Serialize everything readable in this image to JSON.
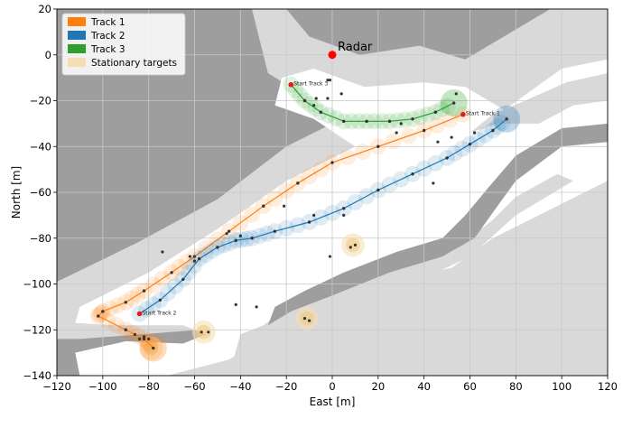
{
  "chart_data": {
    "type": "scatter",
    "title": "",
    "xlabel": "East [m]",
    "ylabel": "North [m]",
    "xlim": [
      -120,
      120
    ],
    "ylim": [
      -140,
      20
    ],
    "xticks": [
      -120,
      -100,
      -80,
      -60,
      -40,
      -20,
      0,
      20,
      40,
      60,
      80,
      100,
      120
    ],
    "yticks": [
      -140,
      -120,
      -100,
      -80,
      -60,
      -40,
      -20,
      0,
      20
    ],
    "grid": true,
    "legend": {
      "placement": "top-left",
      "entries": [
        {
          "label": "Track 1",
          "color": "#ff7f0e"
        },
        {
          "label": "Track 2",
          "color": "#1f77b4"
        },
        {
          "label": "Track 3",
          "color": "#2ca02c"
        },
        {
          "label": "Stationary targets",
          "color": "#f5deb3"
        }
      ]
    },
    "colors": {
      "occupied": "#9e9e9e",
      "unknown": "#d9d9d9",
      "free": "#ffffff",
      "radar": "#ff0000",
      "start_marker": "#e8191b",
      "detections": "#333333"
    },
    "radar": {
      "label": "Radar",
      "x": 0,
      "y": 0
    },
    "tracks": [
      {
        "name": "Track 1",
        "color": "#ff7f0e",
        "start_label": "Start Track 1",
        "start": [
          57,
          -26
        ],
        "points": [
          [
            57,
            -26
          ],
          [
            40,
            -33
          ],
          [
            20,
            -40
          ],
          [
            0,
            -47
          ],
          [
            -15,
            -56
          ],
          [
            -30,
            -66
          ],
          [
            -45,
            -77
          ],
          [
            -60,
            -88
          ],
          [
            -70,
            -95
          ],
          [
            -82,
            -103
          ],
          [
            -90,
            -108
          ],
          [
            -100,
            -112
          ],
          [
            -102,
            -114
          ],
          [
            -90,
            -120
          ],
          [
            -82,
            -124
          ],
          [
            -78,
            -128
          ]
        ]
      },
      {
        "name": "Track 2",
        "color": "#1f77b4",
        "start_label": "Start Track 2",
        "start": [
          -84,
          -113
        ],
        "points": [
          [
            -84,
            -113
          ],
          [
            -75,
            -107
          ],
          [
            -65,
            -98
          ],
          [
            -58,
            -89
          ],
          [
            -50,
            -84
          ],
          [
            -42,
            -81
          ],
          [
            -35,
            -80
          ],
          [
            -25,
            -77
          ],
          [
            -10,
            -73
          ],
          [
            5,
            -67
          ],
          [
            20,
            -59
          ],
          [
            35,
            -52
          ],
          [
            50,
            -45
          ],
          [
            60,
            -39
          ],
          [
            70,
            -33
          ],
          [
            76,
            -28
          ]
        ]
      },
      {
        "name": "Track 3",
        "color": "#2ca02c",
        "start_label": "Start Track 3",
        "start": [
          -18,
          -13
        ],
        "points": [
          [
            -18,
            -13
          ],
          [
            -12,
            -20
          ],
          [
            -5,
            -25
          ],
          [
            5,
            -29
          ],
          [
            15,
            -29
          ],
          [
            25,
            -29
          ],
          [
            35,
            -28
          ],
          [
            45,
            -25
          ],
          [
            53,
            -21
          ]
        ]
      }
    ],
    "stationary_targets": [
      [
        -56,
        -121
      ],
      [
        -11,
        -115
      ],
      [
        9,
        -83
      ],
      [
        -79,
        -128
      ]
    ],
    "detections": [
      [
        -2,
        -11
      ],
      [
        -1,
        -11
      ],
      [
        4,
        -17
      ],
      [
        -7,
        -19
      ],
      [
        -21,
        -66
      ],
      [
        -8,
        -70
      ],
      [
        5,
        -70
      ],
      [
        46,
        -38
      ],
      [
        52,
        -36
      ],
      [
        54,
        -17
      ],
      [
        62,
        -34
      ],
      [
        44,
        -56
      ],
      [
        -40,
        -79
      ],
      [
        -46,
        -78
      ],
      [
        -60,
        -90
      ],
      [
        -62,
        -88
      ],
      [
        -74,
        -86
      ],
      [
        -42,
        -109
      ],
      [
        -33,
        -110
      ],
      [
        -54,
        -121
      ],
      [
        -57,
        -121
      ],
      [
        -12,
        -115
      ],
      [
        -10,
        -116
      ],
      [
        8,
        -84
      ],
      [
        10,
        -83
      ],
      [
        -86,
        -122
      ],
      [
        -84,
        -124
      ],
      [
        -82,
        -123
      ],
      [
        -80,
        -124
      ],
      [
        -1,
        -88
      ],
      [
        28,
        -34
      ],
      [
        30,
        -30
      ],
      [
        -2,
        -19
      ],
      [
        -8,
        -22
      ]
    ]
  }
}
